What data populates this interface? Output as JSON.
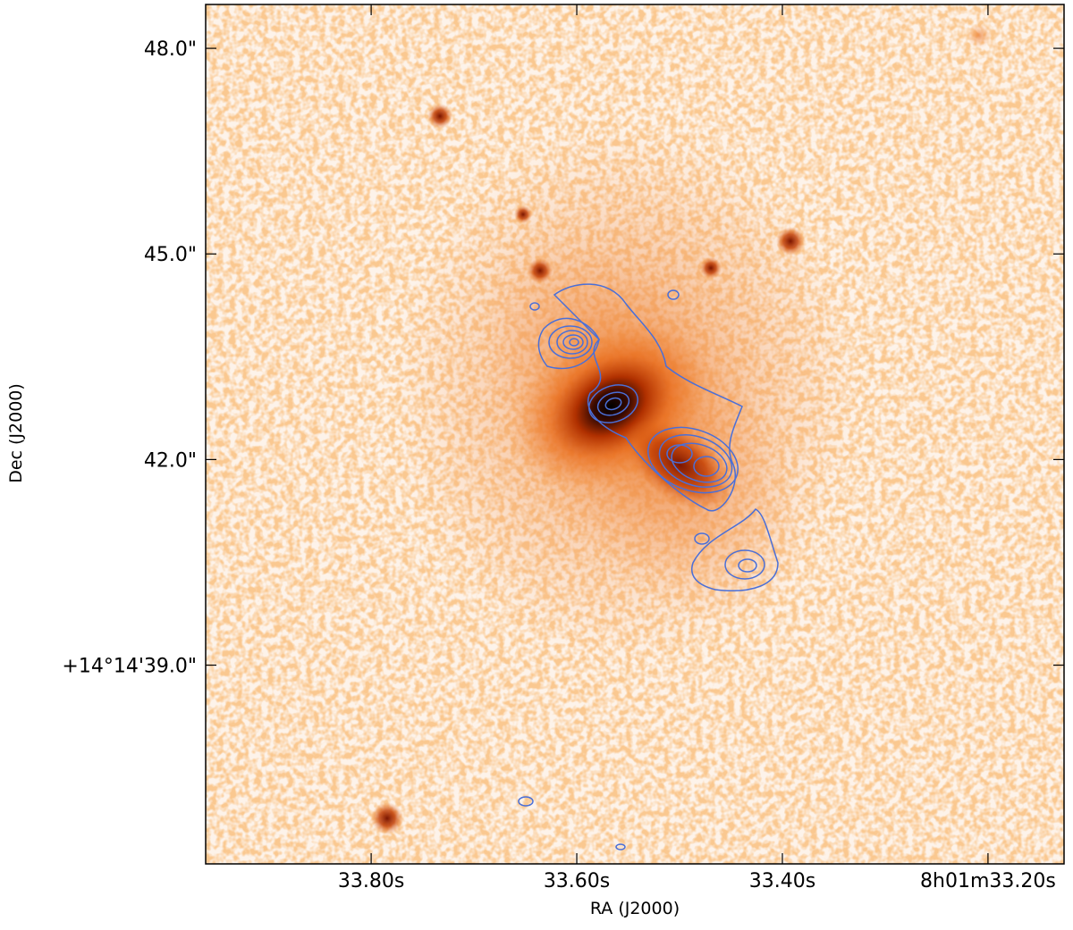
{
  "chart_data": {
    "type": "image",
    "x_label": "RA (J2000)",
    "y_label": "Dec (J2000)",
    "xlim": [
      33.961,
      33.126
    ],
    "ylim": [
      36.1,
      48.64
    ],
    "xticks": [
      {
        "value": 33.8,
        "label": "33.80s"
      },
      {
        "value": 33.6,
        "label": "33.60s"
      },
      {
        "value": 33.4,
        "label": "33.40s"
      },
      {
        "value": 33.2,
        "label": "8h01m33.20s"
      }
    ],
    "yticks": [
      {
        "value": 48.0,
        "label": "48.0\""
      },
      {
        "value": 45.0,
        "label": "45.0\""
      },
      {
        "value": 42.0,
        "label": "42.0\""
      },
      {
        "value": 39.0,
        "label": "+14°14'39.0\""
      }
    ],
    "contour_color": "#4a6fd8"
  }
}
